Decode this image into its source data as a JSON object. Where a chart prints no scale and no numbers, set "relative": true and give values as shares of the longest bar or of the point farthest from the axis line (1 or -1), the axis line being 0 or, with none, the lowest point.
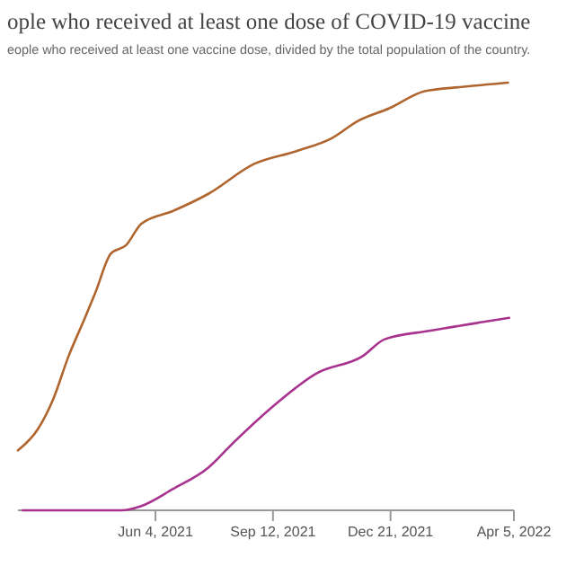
{
  "chart_data": {
    "type": "line",
    "title": "ople who received at least one dose of COVID-19 vaccine",
    "subtitle": "eople who received at least one vaccine dose, divided by the total population of the country.",
    "relative": true,
    "xlim": [
      "2021-02-07",
      "2022-04-05"
    ],
    "xticks": [
      {
        "value": "2021-06-04",
        "label": "Jun 4, 2021"
      },
      {
        "value": "2021-09-12",
        "label": "Sep 12, 2021"
      },
      {
        "value": "2021-12-21",
        "label": "Dec 21, 2021"
      },
      {
        "value": "2022-04-05",
        "label": "Apr 5, 2022"
      }
    ],
    "series": [
      {
        "color": "#b0652e",
        "x": [
          "2021-02-07",
          "2021-02-24",
          "2021-03-09",
          "2021-03-22",
          "2021-04-05",
          "2021-04-14",
          "2021-04-27",
          "2021-05-10",
          "2021-05-23",
          "2021-06-19",
          "2021-07-19",
          "2021-08-27",
          "2021-10-02",
          "2021-11-01",
          "2021-11-23",
          "2021-12-20",
          "2022-01-19",
          "2022-02-20",
          "2022-03-31"
        ],
        "values": [
          0.14,
          0.19,
          0.26,
          0.36,
          0.45,
          0.51,
          0.6,
          0.62,
          0.67,
          0.7,
          0.74,
          0.81,
          0.84,
          0.87,
          0.91,
          0.94,
          0.98,
          0.99,
          1
        ]
      },
      {
        "color": "#a8338f",
        "x": [
          "2021-02-11",
          "2021-05-06",
          "2021-05-23",
          "2021-06-19",
          "2021-07-19",
          "2021-08-10",
          "2021-09-15",
          "2021-10-19",
          "2021-11-27",
          "2021-12-16",
          "2022-01-24",
          "2022-03-09",
          "2022-04-01"
        ],
        "values": [
          0,
          0,
          0.01,
          0.05,
          0.1,
          0.16,
          0.25,
          0.32,
          0.36,
          0.4,
          0.42,
          0.44,
          0.45
        ]
      }
    ]
  }
}
